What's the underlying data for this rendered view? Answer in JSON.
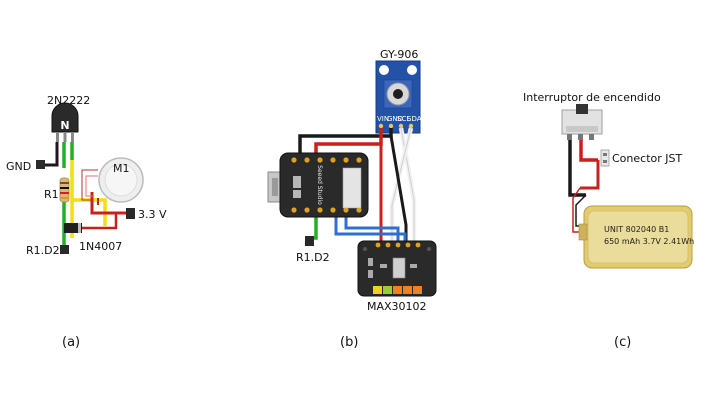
{
  "panel_a": {
    "transistor_label": "2N2222",
    "gnd_label": "GND",
    "resistor_label": "R1",
    "motor_label": "M1",
    "supply_label": "3.3 V",
    "pin_label": "R1.D2",
    "diode_label": "1N4007",
    "caption": "(a)"
  },
  "panel_b": {
    "sensor_label": "GY-906",
    "sensor_pins": [
      "VIN",
      "GND",
      "SCL",
      "SDA"
    ],
    "board_text": "Seeed Studio",
    "pin_label": "R1.D2",
    "module_label": "MAX30102",
    "caption": "(b)"
  },
  "panel_c": {
    "switch_label": "Interruptor de encendido",
    "connector_label": "Conector JST",
    "battery_line1": "UNIT 802040 B1",
    "battery_line2": "650 mAh 3.7V 2.41Wh",
    "caption": "(c)"
  },
  "colors": {
    "wire_red": "#c8201c",
    "wire_black": "#1a1a1a",
    "wire_green": "#22b022",
    "wire_yellow": "#f0e010",
    "wire_blue": "#2f6fd0",
    "wire_white": "#f4f4f4",
    "sensor_blue": "#2452a8",
    "battery_yellow": "#e2cc72"
  }
}
